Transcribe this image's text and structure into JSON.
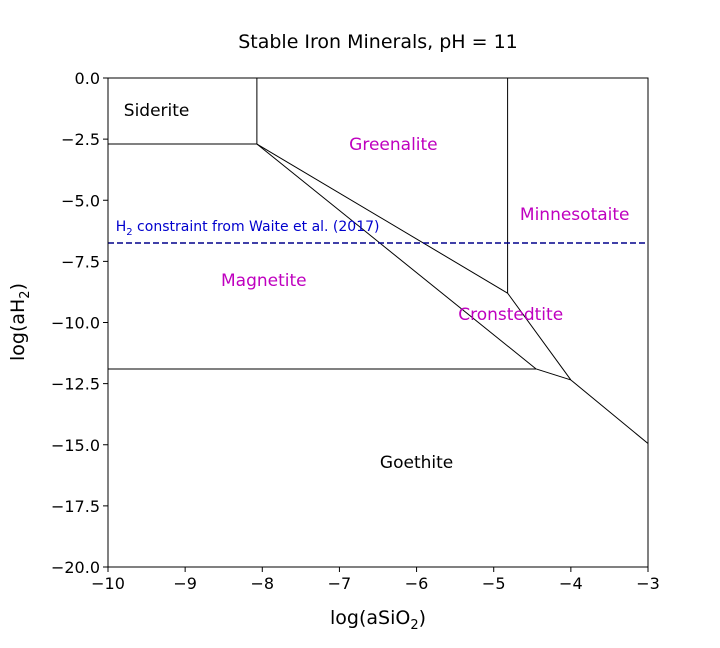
{
  "chart_data": {
    "type": "line",
    "title": "Stable Iron Minerals, pH = 11",
    "xlabel": {
      "base": "log(aSiO",
      "sub": "2",
      "tail": ")"
    },
    "ylabel": {
      "base": "log(aH",
      "sub": "2",
      "tail": ")"
    },
    "xlim": [
      -10,
      -3
    ],
    "ylim": [
      -20,
      0
    ],
    "grid": false,
    "xticks": [
      -10,
      -9,
      -8,
      -7,
      -6,
      -5,
      -4,
      -3
    ],
    "xtick_labels": [
      "−10",
      "−9",
      "−8",
      "−7",
      "−6",
      "−5",
      "−4",
      "−3"
    ],
    "yticks": [
      0,
      -2.5,
      -5,
      -7.5,
      -10,
      -12.5,
      -15,
      -17.5,
      -20
    ],
    "ytick_labels": [
      "0.0",
      "−2.5",
      "−5.0",
      "−7.5",
      "−10.0",
      "−12.5",
      "−15.0",
      "−17.5",
      "−20.0"
    ],
    "boundary_color": "#000000",
    "boundaries": [
      [
        [
          -10,
          -2.7
        ],
        [
          -8.07,
          -2.7
        ]
      ],
      [
        [
          -8.07,
          0
        ],
        [
          -8.07,
          -2.7
        ]
      ],
      [
        [
          -8.07,
          -2.7
        ],
        [
          -4.45,
          -11.9
        ]
      ],
      [
        [
          -10,
          -11.9
        ],
        [
          -4.45,
          -11.9
        ]
      ],
      [
        [
          -8.07,
          -2.7
        ],
        [
          -4.82,
          -8.8
        ]
      ],
      [
        [
          -4.82,
          0
        ],
        [
          -4.82,
          -8.8
        ]
      ],
      [
        [
          -4.82,
          -8.8
        ],
        [
          -4.0,
          -12.35
        ]
      ],
      [
        [
          -4.45,
          -11.9
        ],
        [
          -4.0,
          -12.35
        ]
      ],
      [
        [
          -4.0,
          -12.35
        ],
        [
          -3,
          -14.95
        ]
      ]
    ],
    "reference_line": {
      "y": -6.75,
      "color": "#00008b",
      "style": "dashed",
      "label": {
        "pre": "H",
        "sub": "2",
        "post": " constraint from Waite et al. (2017)"
      },
      "label_color": "#0000cd",
      "label_x": -9.9,
      "label_y": -6.25
    },
    "regions": [
      {
        "name": "Siderite",
        "x": -9.37,
        "y": -1.35,
        "color": "#000000"
      },
      {
        "name": "Greenalite",
        "x": -6.3,
        "y": -2.75,
        "color": "#bf00bf"
      },
      {
        "name": "Minnesotaite",
        "x": -3.95,
        "y": -5.6,
        "color": "#bf00bf"
      },
      {
        "name": "Magnetite",
        "x": -7.98,
        "y": -8.3,
        "color": "#bf00bf"
      },
      {
        "name": "Cronstedtite",
        "x": -4.78,
        "y": -9.7,
        "color": "#bf00bf"
      },
      {
        "name": "Goethite",
        "x": -6.0,
        "y": -15.75,
        "color": "#000000"
      }
    ]
  }
}
